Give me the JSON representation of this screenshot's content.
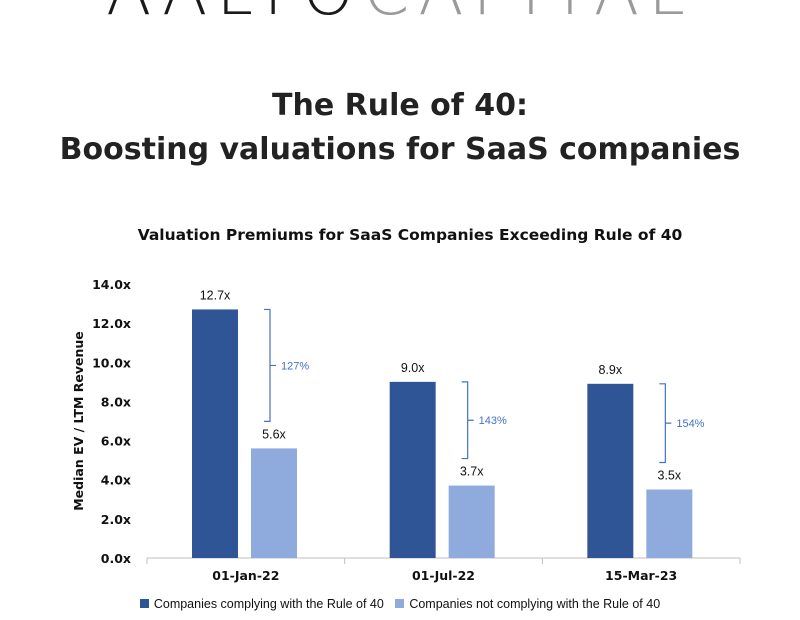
{
  "brand": {
    "part1": "AALTO",
    "part2": "CAPITAL"
  },
  "headline": {
    "line1": "The Rule of 40:",
    "line2": "Boosting valuations for SaaS companies"
  },
  "colors": {
    "complying": "#2f5597",
    "not_complying": "#8faadc",
    "bracket": "#4472c4",
    "axis": "#bfbfbf"
  },
  "chart_data": {
    "type": "bar",
    "title": "Valuation Premiums for SaaS Companies Exceeding Rule of 40",
    "ylabel": "Median EV / LTM Revenue",
    "xlabel": "",
    "ylim": [
      0,
      14
    ],
    "yticks": [
      "0.0x",
      "2.0x",
      "4.0x",
      "6.0x",
      "8.0x",
      "10.0x",
      "12.0x",
      "14.0x"
    ],
    "categories": [
      "01-Jan-22",
      "01-Jul-22",
      "15-Mar-23"
    ],
    "series": [
      {
        "name": "Companies complying with the Rule of 40",
        "values": [
          12.7,
          9.0,
          8.9
        ],
        "labels": [
          "12.7x",
          "9.0x",
          "8.9x"
        ]
      },
      {
        "name": "Companies not complying with the Rule of 40",
        "values": [
          5.6,
          3.7,
          3.5
        ],
        "labels": [
          "5.6x",
          "3.7x",
          "3.5x"
        ]
      }
    ],
    "premiums": [
      "127%",
      "143%",
      "154%"
    ],
    "legend": "bottom",
    "grid": false
  }
}
